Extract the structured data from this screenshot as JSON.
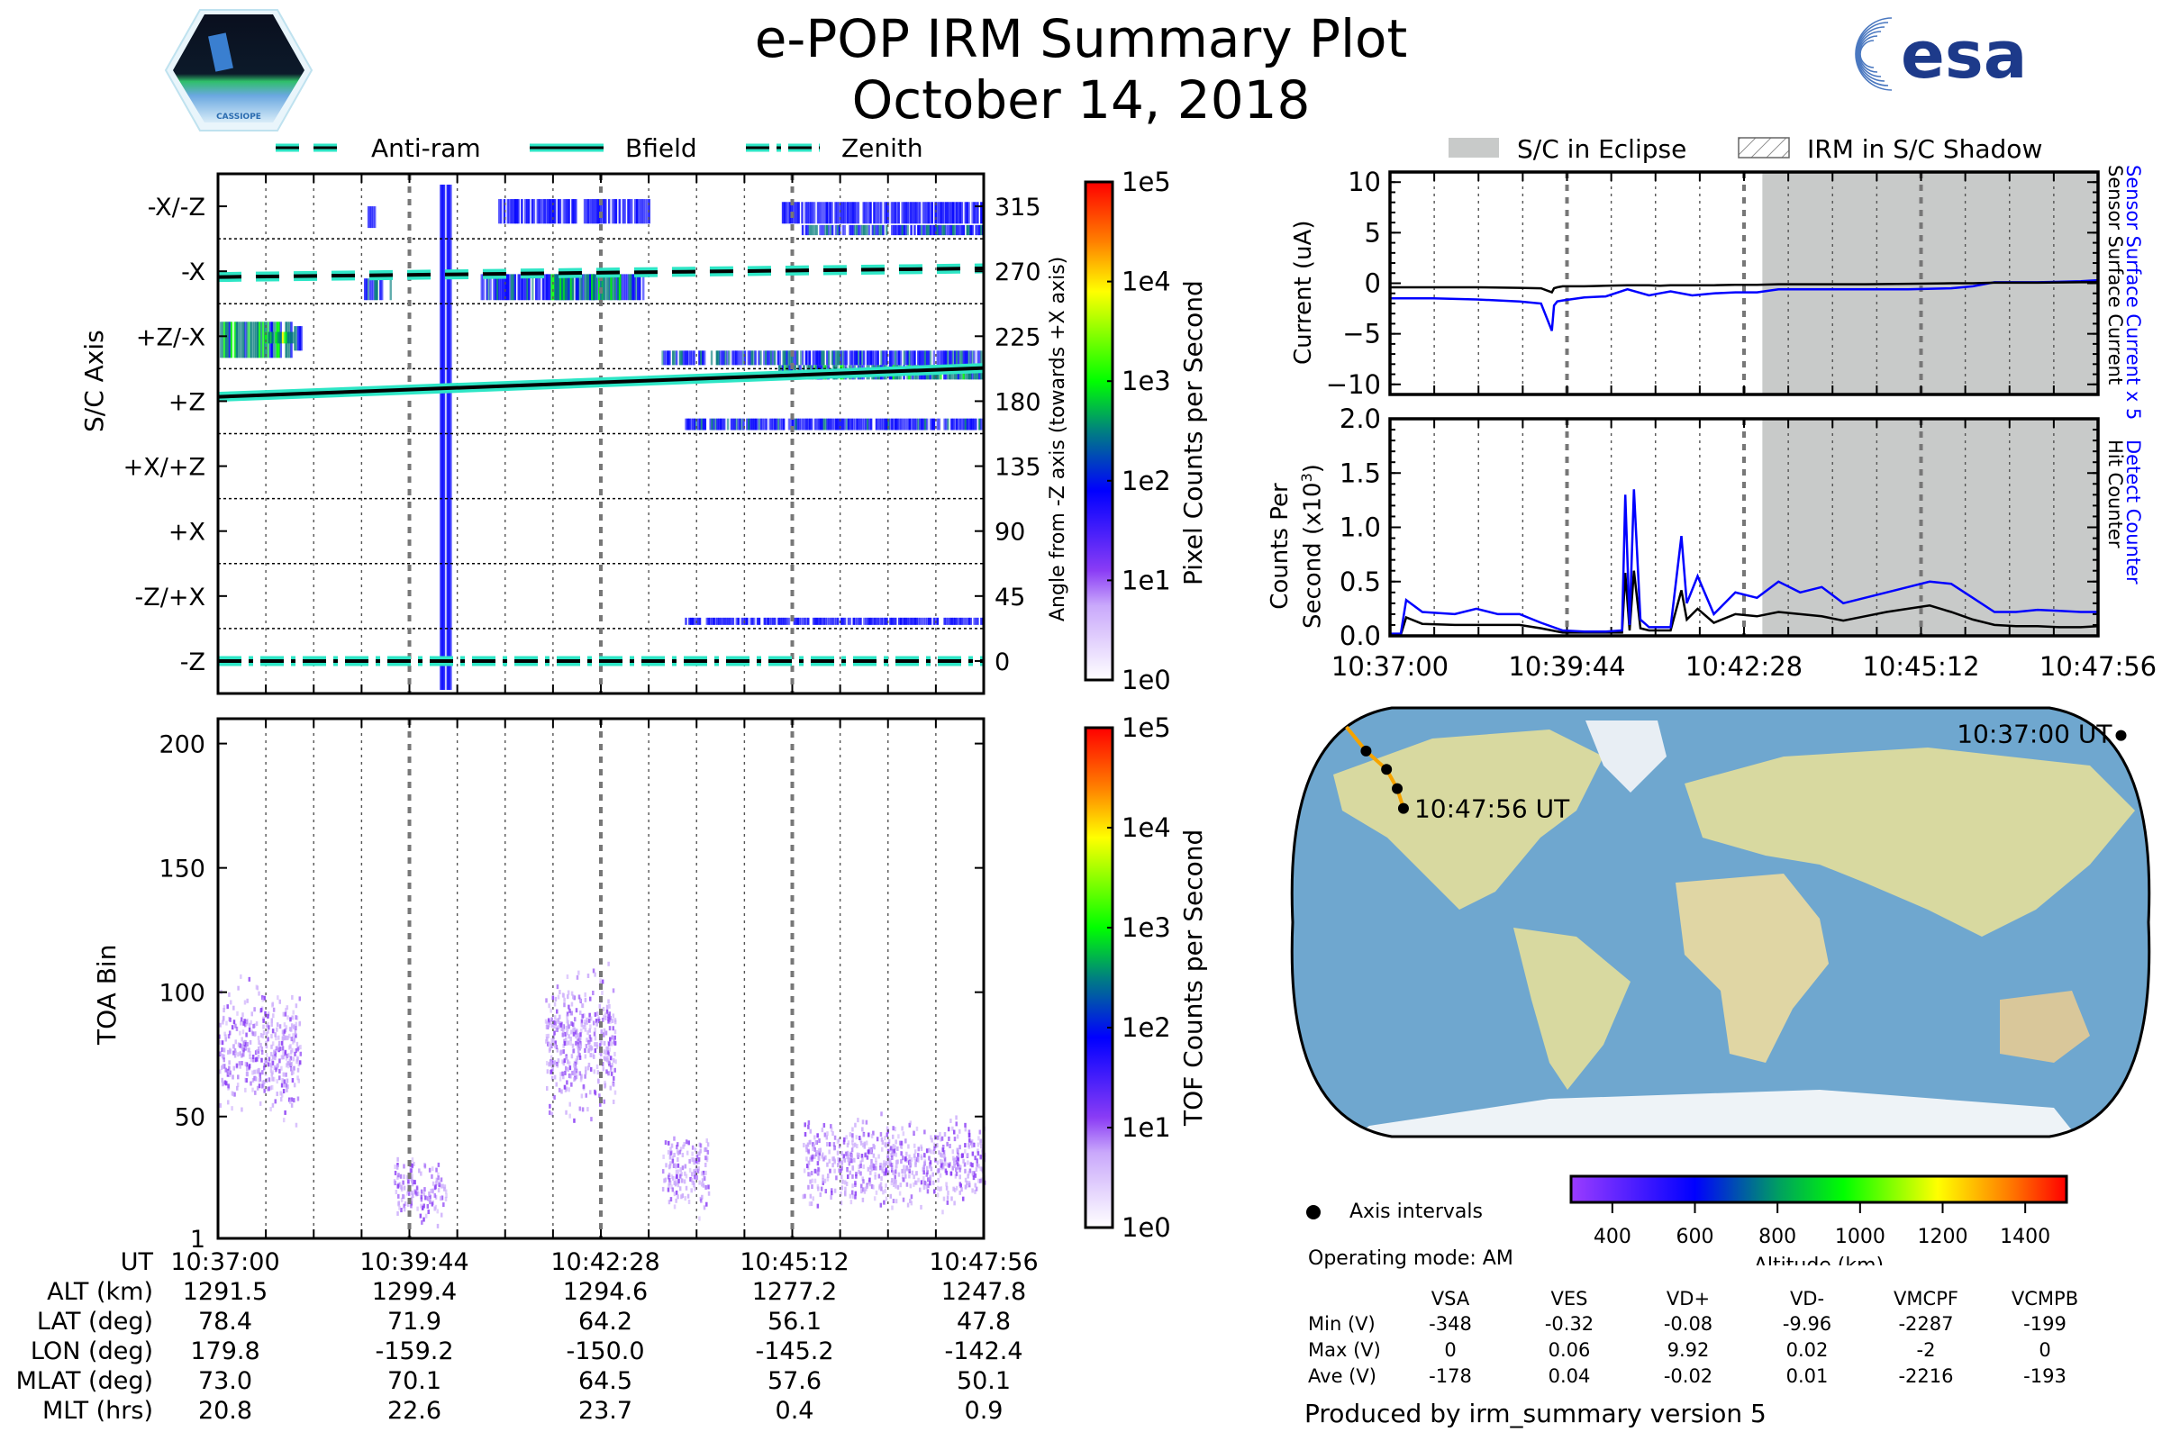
{
  "header": {
    "title": "e-POP IRM Summary Plot",
    "date": "October 14, 2018",
    "left_logo": "cassiope-mission-logo",
    "left_logo_text": "CASSIOPE",
    "right_logo": "esa-logo",
    "right_logo_text": "esa"
  },
  "legend_top_left": {
    "items": [
      {
        "label": "Anti-ram",
        "style": "dashed"
      },
      {
        "label": "Bfield",
        "style": "solid"
      },
      {
        "label": "Zenith",
        "style": "dashdot"
      }
    ]
  },
  "legend_top_right": {
    "items": [
      {
        "label": "S/C in Eclipse",
        "style": "gray-fill"
      },
      {
        "label": "IRM in S/C Shadow",
        "style": "hatch"
      }
    ]
  },
  "colors": {
    "line_cyan": "#2ee6c6",
    "eclipse_gray": "#c8cac9",
    "detect_blue": "#0000ff",
    "hit_black": "#000000",
    "spec_purple": "#8a3cf5",
    "orbit_orange": "#f5a300"
  },
  "chart_data": [
    {
      "id": "sc-axis-spectrogram",
      "type": "heatmap",
      "ylabel": "S/C Axis",
      "ylabel_right": "Angle from -Z axis (towards +X axis)",
      "y_axis_labels": [
        "-X/-Z",
        "-X",
        "+Z/-X",
        "+Z",
        "+X/+Z",
        "+X",
        "-Z/+X",
        "-Z"
      ],
      "y_axis_angles": [
        315,
        270,
        225,
        180,
        135,
        90,
        45,
        0
      ],
      "right_ticks": [
        "315",
        "270",
        "225",
        "180",
        "135",
        "90",
        "45",
        "0"
      ],
      "ylim": [
        -22.5,
        337.5
      ],
      "xlim_seconds": [
        0,
        656
      ],
      "colorbar": {
        "label": "Pixel Counts per Second",
        "ticks": [
          "1e5",
          "1e4",
          "1e3",
          "1e2",
          "1e1",
          "1e0"
        ],
        "scale": "log",
        "range": [
          1,
          100000
        ]
      },
      "lines": [
        {
          "name": "Anti-ram",
          "style": "dashed",
          "angle_start": 266,
          "angle_end": 272
        },
        {
          "name": "Bfield",
          "style": "solid",
          "angle_start": 183,
          "angle_end": 203
        },
        {
          "name": "Zenith",
          "style": "dashdot",
          "angle_start": 0,
          "angle_end": 0
        }
      ],
      "regions": [
        {
          "t0": 0,
          "t1": 65,
          "a0": 210,
          "a1": 235,
          "level": 30
        },
        {
          "t0": 40,
          "t1": 65,
          "a0": 220,
          "a1": 228,
          "level": 60
        },
        {
          "t0": 65,
          "t1": 72,
          "a0": 215,
          "a1": 232,
          "level": 8
        },
        {
          "t0": 125,
          "t1": 150,
          "a0": 250,
          "a1": 265,
          "level": 10
        },
        {
          "t0": 128,
          "t1": 135,
          "a0": 300,
          "a1": 315,
          "level": 5
        },
        {
          "t0": 225,
          "t1": 365,
          "a0": 250,
          "a1": 268,
          "level": 8
        },
        {
          "t0": 285,
          "t1": 345,
          "a0": 250,
          "a1": 268,
          "level": 30
        },
        {
          "t0": 240,
          "t1": 370,
          "a0": 303,
          "a1": 320,
          "level": 6
        },
        {
          "t0": 380,
          "t1": 656,
          "a0": 205,
          "a1": 215,
          "level": 10
        },
        {
          "t0": 480,
          "t1": 656,
          "a0": 195,
          "a1": 205,
          "level": 20
        },
        {
          "t0": 400,
          "t1": 656,
          "a0": 160,
          "a1": 168,
          "level": 8
        },
        {
          "t0": 500,
          "t1": 656,
          "a0": 295,
          "a1": 302,
          "level": 10
        },
        {
          "t0": 480,
          "t1": 656,
          "a0": 303,
          "a1": 318,
          "level": 5
        },
        {
          "t0": 400,
          "t1": 656,
          "a0": 25,
          "a1": 30,
          "level": 4
        },
        {
          "t0": 190,
          "t1": 200,
          "a0": -20,
          "a1": 330,
          "level": 3
        }
      ]
    },
    {
      "id": "toa-spectrogram",
      "type": "heatmap",
      "ylabel": "TOA Bin",
      "y_ticks": [
        1,
        50,
        100,
        150,
        200
      ],
      "ylim": [
        1,
        210
      ],
      "xlim_seconds": [
        0,
        656
      ],
      "colorbar": {
        "label": "TOF Counts per Second",
        "ticks": [
          "1e5",
          "1e4",
          "1e3",
          "1e2",
          "1e1",
          "1e0"
        ],
        "scale": "log",
        "range": [
          1,
          100000
        ]
      },
      "regions": [
        {
          "t0": 0,
          "t1": 70,
          "b0": 60,
          "b1": 95,
          "level": 5
        },
        {
          "t0": 150,
          "t1": 195,
          "b0": 12,
          "b1": 30,
          "level": 2
        },
        {
          "t0": 280,
          "t1": 340,
          "b0": 60,
          "b1": 100,
          "level": 6
        },
        {
          "t0": 380,
          "t1": 420,
          "b0": 18,
          "b1": 40,
          "level": 3
        },
        {
          "t0": 500,
          "t1": 656,
          "b0": 20,
          "b1": 45,
          "level": 5
        }
      ]
    },
    {
      "id": "current-plot",
      "type": "line",
      "ylabel": "Current (uA)",
      "ylim": [
        -11,
        11
      ],
      "y_ticks": [
        -10,
        -5,
        0,
        5,
        10
      ],
      "right_labels": [
        {
          "text": "Sensor Surface Current x 5",
          "color": "#0000ff"
        },
        {
          "text": "Sensor Surface Current",
          "color": "#000000"
        }
      ],
      "eclipse_start_seconds": 345,
      "x_seconds": [
        0,
        40,
        80,
        120,
        140,
        150,
        152,
        155,
        160,
        180,
        200,
        220,
        240,
        250,
        260,
        280,
        300,
        320,
        340,
        360,
        400,
        440,
        480,
        520,
        540,
        560,
        600,
        640,
        656
      ],
      "series": [
        {
          "name": "Sensor Surface Current",
          "color": "#000000",
          "values": [
            -0.4,
            -0.4,
            -0.4,
            -0.45,
            -0.5,
            -0.9,
            -0.5,
            -0.4,
            -0.3,
            -0.3,
            -0.25,
            -0.2,
            -0.2,
            -0.25,
            -0.2,
            -0.2,
            -0.2,
            -0.15,
            -0.15,
            -0.1,
            -0.1,
            -0.1,
            -0.05,
            0,
            0,
            0.05,
            0.05,
            0.1,
            0.1
          ]
        },
        {
          "name": "Sensor Surface Current x 5",
          "color": "#0000ff",
          "values": [
            -1.5,
            -1.5,
            -1.6,
            -1.8,
            -2.0,
            -4.7,
            -2.2,
            -1.8,
            -1.7,
            -1.4,
            -1.3,
            -0.6,
            -1.2,
            -1.0,
            -0.8,
            -1.2,
            -1.0,
            -0.9,
            -0.9,
            -0.6,
            -0.6,
            -0.6,
            -0.6,
            -0.5,
            -0.3,
            0.1,
            0.1,
            0.2,
            0.3
          ]
        }
      ]
    },
    {
      "id": "counts-plot",
      "type": "line",
      "ylabel": "Counts Per Second (x10^3)",
      "ylim": [
        0,
        2.0
      ],
      "y_ticks": [
        0.0,
        0.5,
        1.0,
        1.5,
        2.0
      ],
      "x_ticks": [
        "10:37:00",
        "10:39:44",
        "10:42:28",
        "10:45:12",
        "10:47:56"
      ],
      "right_labels": [
        {
          "text": "Detect Counter",
          "color": "#0000ff"
        },
        {
          "text": "Hit Counter",
          "color": "#000000"
        }
      ],
      "eclipse_start_seconds": 345,
      "x_seconds": [
        0,
        10,
        15,
        30,
        60,
        80,
        100,
        120,
        140,
        160,
        180,
        200,
        215,
        218,
        222,
        226,
        232,
        240,
        260,
        270,
        275,
        285,
        300,
        320,
        340,
        360,
        380,
        400,
        420,
        440,
        460,
        480,
        500,
        520,
        540,
        560,
        580,
        600,
        620,
        640,
        656
      ],
      "series": [
        {
          "name": "Detect Counter",
          "color": "#0000ff",
          "values": [
            0.02,
            0.02,
            0.33,
            0.22,
            0.2,
            0.25,
            0.2,
            0.2,
            0.12,
            0.05,
            0.04,
            0.04,
            0.05,
            1.3,
            0.1,
            1.35,
            0.15,
            0.08,
            0.08,
            0.92,
            0.3,
            0.55,
            0.2,
            0.4,
            0.35,
            0.5,
            0.4,
            0.45,
            0.3,
            0.35,
            0.4,
            0.45,
            0.5,
            0.48,
            0.35,
            0.22,
            0.22,
            0.24,
            0.23,
            0.22,
            0.22
          ]
        },
        {
          "name": "Hit Counter",
          "color": "#000000",
          "values": [
            0.01,
            0.01,
            0.17,
            0.11,
            0.1,
            0.1,
            0.1,
            0.1,
            0.07,
            0.03,
            0.03,
            0.03,
            0.03,
            0.58,
            0.05,
            0.6,
            0.07,
            0.05,
            0.05,
            0.42,
            0.15,
            0.25,
            0.12,
            0.2,
            0.18,
            0.22,
            0.2,
            0.18,
            0.14,
            0.18,
            0.22,
            0.25,
            0.28,
            0.22,
            0.15,
            0.1,
            0.09,
            0.09,
            0.08,
            0.08,
            0.09
          ]
        }
      ]
    }
  ],
  "time_axis": {
    "major_ticks": [
      "10:37:00",
      "10:39:44",
      "10:42:28",
      "10:45:12",
      "10:47:56"
    ],
    "duration_seconds": 656
  },
  "ephemeris_table": {
    "row_labels": [
      "UT",
      "ALT (km)",
      "LAT (deg)",
      "LON (deg)",
      "MLAT (deg)",
      "MLT (hrs)"
    ],
    "columns": [
      [
        "10:37:00",
        "1291.5",
        "78.4",
        "179.8",
        "73.0",
        "20.8"
      ],
      [
        "10:39:44",
        "1299.4",
        "71.9",
        "-159.2",
        "70.1",
        "22.6"
      ],
      [
        "10:42:28",
        "1294.6",
        "64.2",
        "-150.0",
        "64.5",
        "23.7"
      ],
      [
        "10:45:12",
        "1277.2",
        "56.1",
        "-145.2",
        "57.6",
        "0.4"
      ],
      [
        "10:47:56",
        "1247.8",
        "47.8",
        "-142.4",
        "50.1",
        "0.9"
      ]
    ]
  },
  "map": {
    "start_label": "10:37:00 UT",
    "end_label": "10:47:56 UT",
    "orbit_points": [
      {
        "lat": 78.4,
        "lon": 179.8
      },
      {
        "lat": 71.9,
        "lon": -159.2
      },
      {
        "lat": 64.2,
        "lon": -150.0
      },
      {
        "lat": 56.1,
        "lon": -145.2
      },
      {
        "lat": 47.8,
        "lon": -142.4
      }
    ]
  },
  "altitude_colorbar": {
    "label": "Altitude (km)",
    "ticks": [
      "400",
      "600",
      "800",
      "1000",
      "1200",
      "1400"
    ],
    "range": [
      300,
      1500
    ]
  },
  "footer": {
    "axis_intervals_label": "Axis intervals",
    "operating_mode": "Operating mode: AM",
    "produced_by": "Produced by irm_summary version 5"
  },
  "voltage_table": {
    "headers": [
      "VSA",
      "VES",
      "VD+",
      "VD-",
      "VMCPF",
      "VCMPB"
    ],
    "rows": [
      {
        "label": "Min (V)",
        "values": [
          "-348",
          "-0.32",
          "-0.08",
          "-9.96",
          "-2287",
          "-199"
        ]
      },
      {
        "label": "Max (V)",
        "values": [
          "0",
          "0.06",
          "9.92",
          "0.02",
          "-2",
          "0"
        ]
      },
      {
        "label": "Ave (V)",
        "values": [
          "-178",
          "0.04",
          "-0.02",
          "0.01",
          "-2216",
          "-193"
        ]
      }
    ]
  }
}
